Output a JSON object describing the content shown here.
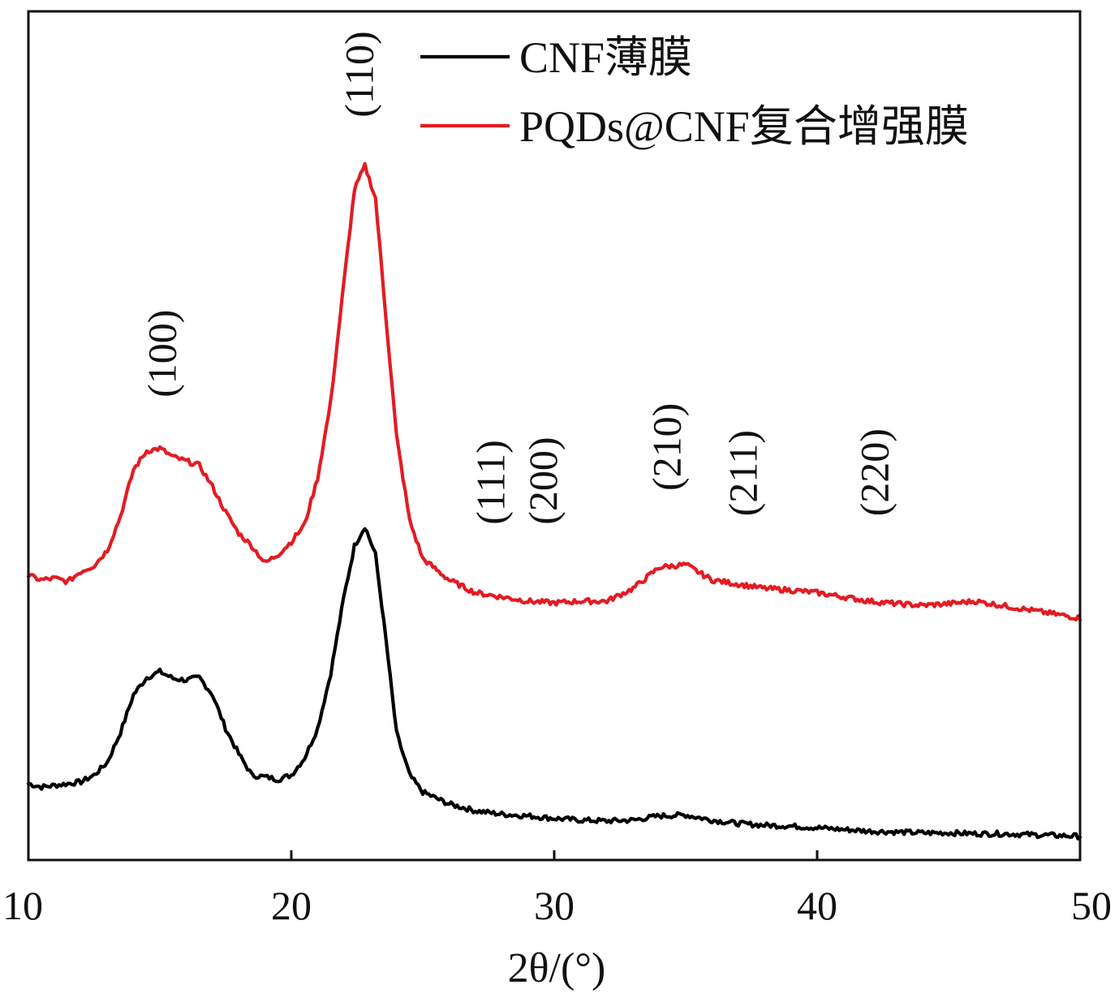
{
  "chart_data": {
    "type": "line",
    "xlabel": "2θ/(°)",
    "xlim": [
      10,
      50
    ],
    "xticks": [
      10,
      20,
      30,
      40,
      50
    ],
    "xtick_labels": [
      "10",
      "20",
      "30",
      "40",
      "50"
    ],
    "ylim": [
      0,
      1
    ],
    "ylabel": "",
    "yaxis_ticks_shown": false,
    "grid": false,
    "legend_position": "top-right",
    "series": [
      {
        "name": "CNF薄膜",
        "color": "#000000",
        "points": [
          [
            10.0,
            0.09
          ],
          [
            10.5,
            0.086
          ],
          [
            11.0,
            0.088
          ],
          [
            11.5,
            0.09
          ],
          [
            12.0,
            0.092
          ],
          [
            12.5,
            0.1
          ],
          [
            13.0,
            0.115
          ],
          [
            13.5,
            0.15
          ],
          [
            14.0,
            0.195
          ],
          [
            14.5,
            0.215
          ],
          [
            15.0,
            0.222
          ],
          [
            15.5,
            0.214
          ],
          [
            16.0,
            0.212
          ],
          [
            16.5,
            0.215
          ],
          [
            17.0,
            0.195
          ],
          [
            17.5,
            0.155
          ],
          [
            18.0,
            0.125
          ],
          [
            18.5,
            0.1
          ],
          [
            19.0,
            0.098
          ],
          [
            19.5,
            0.095
          ],
          [
            20.0,
            0.1
          ],
          [
            20.5,
            0.12
          ],
          [
            21.0,
            0.155
          ],
          [
            21.5,
            0.22
          ],
          [
            22.0,
            0.31
          ],
          [
            22.4,
            0.37
          ],
          [
            22.8,
            0.393
          ],
          [
            23.2,
            0.36
          ],
          [
            23.6,
            0.26
          ],
          [
            24.0,
            0.15
          ],
          [
            24.5,
            0.1
          ],
          [
            25.0,
            0.08
          ],
          [
            26.0,
            0.066
          ],
          [
            27.0,
            0.058
          ],
          [
            28.0,
            0.054
          ],
          [
            29.0,
            0.052
          ],
          [
            30.0,
            0.049
          ],
          [
            31.0,
            0.047
          ],
          [
            32.0,
            0.046
          ],
          [
            33.0,
            0.047
          ],
          [
            34.0,
            0.052
          ],
          [
            35.0,
            0.053
          ],
          [
            36.0,
            0.047
          ],
          [
            37.0,
            0.043
          ],
          [
            38.0,
            0.041
          ],
          [
            39.0,
            0.04
          ],
          [
            40.0,
            0.038
          ],
          [
            41.0,
            0.036
          ],
          [
            42.0,
            0.034
          ],
          [
            43.0,
            0.033
          ],
          [
            44.0,
            0.032
          ],
          [
            45.0,
            0.032
          ],
          [
            46.0,
            0.031
          ],
          [
            47.0,
            0.031
          ],
          [
            48.0,
            0.03
          ],
          [
            49.0,
            0.029
          ],
          [
            50.0,
            0.028
          ]
        ]
      },
      {
        "name": "PQDs@CNF复合增强膜",
        "color": "#e31b23",
        "points": [
          [
            10.0,
            0.335
          ],
          [
            10.5,
            0.33
          ],
          [
            11.0,
            0.332
          ],
          [
            11.5,
            0.328
          ],
          [
            12.0,
            0.34
          ],
          [
            12.5,
            0.347
          ],
          [
            13.0,
            0.365
          ],
          [
            13.5,
            0.405
          ],
          [
            14.0,
            0.46
          ],
          [
            14.5,
            0.482
          ],
          [
            15.0,
            0.485
          ],
          [
            15.5,
            0.475
          ],
          [
            16.0,
            0.47
          ],
          [
            16.5,
            0.465
          ],
          [
            17.0,
            0.44
          ],
          [
            17.5,
            0.41
          ],
          [
            18.0,
            0.385
          ],
          [
            18.5,
            0.37
          ],
          [
            19.0,
            0.35
          ],
          [
            19.5,
            0.36
          ],
          [
            20.0,
            0.375
          ],
          [
            20.5,
            0.395
          ],
          [
            21.0,
            0.45
          ],
          [
            21.5,
            0.54
          ],
          [
            22.0,
            0.68
          ],
          [
            22.4,
            0.79
          ],
          [
            22.8,
            0.818
          ],
          [
            23.2,
            0.78
          ],
          [
            23.6,
            0.64
          ],
          [
            24.0,
            0.5
          ],
          [
            24.5,
            0.4
          ],
          [
            25.0,
            0.355
          ],
          [
            26.0,
            0.33
          ],
          [
            27.0,
            0.315
          ],
          [
            28.0,
            0.31
          ],
          [
            29.0,
            0.305
          ],
          [
            30.0,
            0.303
          ],
          [
            31.0,
            0.305
          ],
          [
            32.0,
            0.305
          ],
          [
            33.0,
            0.32
          ],
          [
            34.0,
            0.345
          ],
          [
            35.0,
            0.348
          ],
          [
            36.0,
            0.33
          ],
          [
            37.0,
            0.325
          ],
          [
            38.0,
            0.32
          ],
          [
            39.0,
            0.318
          ],
          [
            40.0,
            0.315
          ],
          [
            41.0,
            0.31
          ],
          [
            42.0,
            0.305
          ],
          [
            43.0,
            0.302
          ],
          [
            44.0,
            0.3
          ],
          [
            45.0,
            0.302
          ],
          [
            46.0,
            0.305
          ],
          [
            47.0,
            0.3
          ],
          [
            48.0,
            0.295
          ],
          [
            49.0,
            0.29
          ],
          [
            50.0,
            0.285
          ]
        ]
      }
    ],
    "annotations": [
      {
        "text": "(100)",
        "x": 15.6,
        "y": 0.545
      },
      {
        "text": "(110)",
        "x": 23.1,
        "y": 0.875
      },
      {
        "text": "(111)",
        "x": 28.1,
        "y": 0.395
      },
      {
        "text": "(200)",
        "x": 30.1,
        "y": 0.395
      },
      {
        "text": "(210)",
        "x": 34.8,
        "y": 0.435
      },
      {
        "text": "(211)",
        "x": 37.7,
        "y": 0.405
      },
      {
        "text": "(220)",
        "x": 42.7,
        "y": 0.405
      }
    ]
  }
}
